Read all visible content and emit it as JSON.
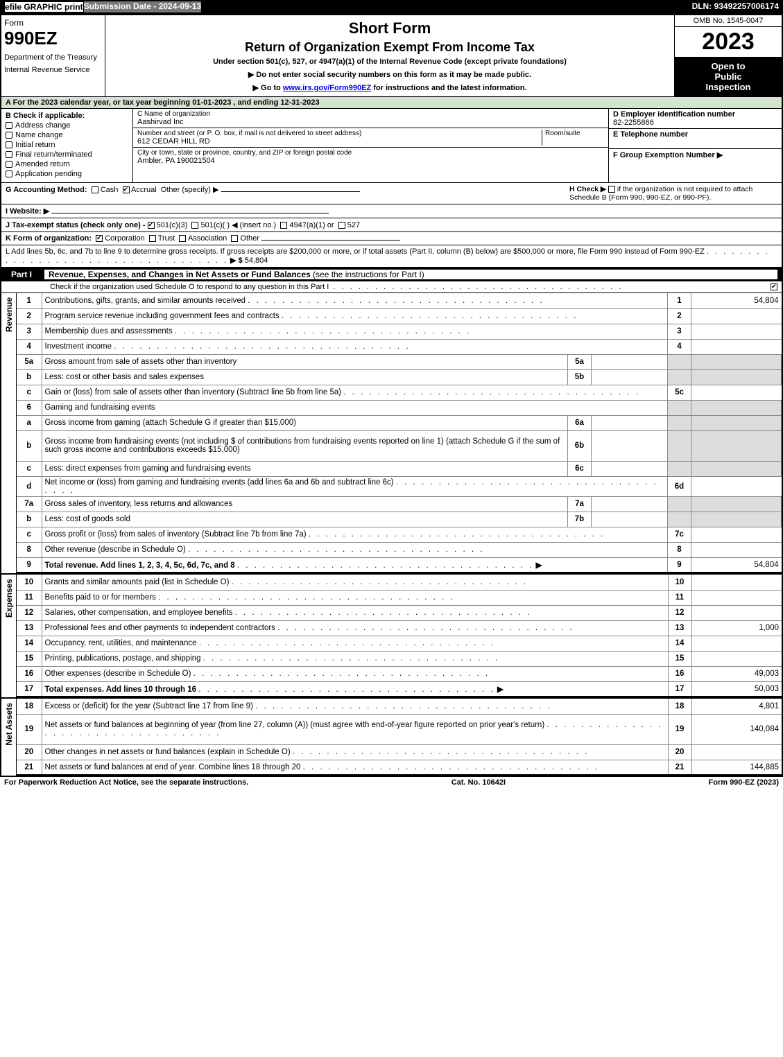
{
  "header": {
    "efile": "efile GRAPHIC print",
    "submission": "Submission Date - 2024-09-13",
    "dln": "DLN: 93492257006174"
  },
  "title": {
    "form_word": "Form",
    "form_number": "990EZ",
    "dept1": "Department of the Treasury",
    "dept2": "Internal Revenue Service",
    "short_form": "Short Form",
    "main": "Return of Organization Exempt From Income Tax",
    "sub1": "Under section 501(c), 527, or 4947(a)(1) of the Internal Revenue Code (except private foundations)",
    "sub2a": "▶ Do not enter social security numbers on this form as it may be made public.",
    "sub2b": "▶ Go to www.irs.gov/Form990EZ for instructions and the latest information.",
    "omb": "OMB No. 1545-0047",
    "year": "2023",
    "open1": "Open to",
    "open2": "Public",
    "open3": "Inspection"
  },
  "rowA": "A  For the 2023 calendar year, or tax year beginning 01-01-2023 , and ending 12-31-2023",
  "boxB": {
    "label": "B  Check if applicable:",
    "items": [
      "Address change",
      "Name change",
      "Initial return",
      "Final return/terminated",
      "Amended return",
      "Application pending"
    ]
  },
  "boxC": {
    "label_name": "C Name of organization",
    "name": "Aashirvad Inc",
    "label_addr": "Number and street (or P. O. box, if mail is not delivered to street address)",
    "room": "Room/suite",
    "addr": "612 CEDAR HILL RD",
    "label_city": "City or town, state or province, country, and ZIP or foreign postal code",
    "city": "Ambler, PA  190021504"
  },
  "boxDEF": {
    "d_label": "D Employer identification number",
    "d_val": "82-2255866",
    "e_label": "E Telephone number",
    "e_val": "",
    "f_label": "F Group Exemption Number  ▶",
    "f_val": ""
  },
  "rowG": {
    "left_label": "G Accounting Method:",
    "cash": "Cash",
    "accrual": "Accrual",
    "other": "Other (specify) ▶",
    "h_text1": "H  Check ▶",
    "h_text2": "if the organization is not required to attach Schedule B (Form 990, 990-EZ, or 990-PF)."
  },
  "rowI": {
    "label": "I Website: ▶"
  },
  "rowJ": {
    "label": "J Tax-exempt status (check only one) -",
    "o1": "501(c)(3)",
    "o2": "501(c)(  )  ◀ (insert no.)",
    "o3": "4947(a)(1) or",
    "o4": "527"
  },
  "rowK": {
    "label": "K Form of organization:",
    "items": [
      "Corporation",
      "Trust",
      "Association",
      "Other"
    ]
  },
  "rowL": {
    "text": "L Add lines 5b, 6c, and 7b to line 9 to determine gross receipts. If gross receipts are $200,000 or more, or if total assets (Part II, column (B) below) are $500,000 or more, file Form 990 instead of Form 990-EZ",
    "arrow": "▶ $",
    "amount": "54,804"
  },
  "part1": {
    "tag": "Part I",
    "title": "Revenue, Expenses, and Changes in Net Assets or Fund Balances",
    "paren": "(see the instructions for Part I)",
    "sub": "Check if the organization used Schedule O to respond to any question in this Part I"
  },
  "sections": {
    "revenue": "Revenue",
    "expenses": "Expenses",
    "netassets": "Net Assets"
  },
  "lines": [
    {
      "n": "1",
      "d": "Contributions, gifts, grants, and similar amounts received",
      "r": "1",
      "a": "54,804"
    },
    {
      "n": "2",
      "d": "Program service revenue including government fees and contracts",
      "r": "2",
      "a": ""
    },
    {
      "n": "3",
      "d": "Membership dues and assessments",
      "r": "3",
      "a": ""
    },
    {
      "n": "4",
      "d": "Investment income",
      "r": "4",
      "a": ""
    },
    {
      "n": "5a",
      "d": "Gross amount from sale of assets other than inventory",
      "mini": "5a",
      "shade": true
    },
    {
      "n": "b",
      "d": "Less: cost or other basis and sales expenses",
      "mini": "5b",
      "shade": true
    },
    {
      "n": "c",
      "d": "Gain or (loss) from sale of assets other than inventory (Subtract line 5b from line 5a)",
      "r": "5c",
      "a": ""
    },
    {
      "n": "6",
      "d": "Gaming and fundraising events",
      "shade": true,
      "noamt": true
    },
    {
      "n": "a",
      "d": "Gross income from gaming (attach Schedule G if greater than $15,000)",
      "mini": "6a",
      "shade": true
    },
    {
      "n": "b",
      "d": "Gross income from fundraising events (not including $                      of contributions from fundraising events reported on line 1) (attach Schedule G if the sum of such gross income and contributions exceeds $15,000)",
      "mini": "6b",
      "shade": true,
      "tall": true
    },
    {
      "n": "c",
      "d": "Less: direct expenses from gaming and fundraising events",
      "mini": "6c",
      "shade": true
    },
    {
      "n": "d",
      "d": "Net income or (loss) from gaming and fundraising events (add lines 6a and 6b and subtract line 6c)",
      "r": "6d",
      "a": ""
    },
    {
      "n": "7a",
      "d": "Gross sales of inventory, less returns and allowances",
      "mini": "7a",
      "shade": true
    },
    {
      "n": "b",
      "d": "Less: cost of goods sold",
      "mini": "7b",
      "shade": true
    },
    {
      "n": "c",
      "d": "Gross profit or (loss) from sales of inventory (Subtract line 7b from line 7a)",
      "r": "7c",
      "a": ""
    },
    {
      "n": "8",
      "d": "Other revenue (describe in Schedule O)",
      "r": "8",
      "a": ""
    },
    {
      "n": "9",
      "d": "Total revenue. Add lines 1, 2, 3, 4, 5c, 6d, 7c, and 8",
      "r": "9",
      "a": "54,804",
      "bold": true,
      "arrow": true,
      "thick": true
    }
  ],
  "exp_lines": [
    {
      "n": "10",
      "d": "Grants and similar amounts paid (list in Schedule O)",
      "r": "10",
      "a": ""
    },
    {
      "n": "11",
      "d": "Benefits paid to or for members",
      "r": "11",
      "a": ""
    },
    {
      "n": "12",
      "d": "Salaries, other compensation, and employee benefits",
      "r": "12",
      "a": ""
    },
    {
      "n": "13",
      "d": "Professional fees and other payments to independent contractors",
      "r": "13",
      "a": "1,000"
    },
    {
      "n": "14",
      "d": "Occupancy, rent, utilities, and maintenance",
      "r": "14",
      "a": ""
    },
    {
      "n": "15",
      "d": "Printing, publications, postage, and shipping",
      "r": "15",
      "a": ""
    },
    {
      "n": "16",
      "d": "Other expenses (describe in Schedule O)",
      "r": "16",
      "a": "49,003"
    },
    {
      "n": "17",
      "d": "Total expenses. Add lines 10 through 16",
      "r": "17",
      "a": "50,003",
      "bold": true,
      "arrow": true,
      "thick": true
    }
  ],
  "net_lines": [
    {
      "n": "18",
      "d": "Excess or (deficit) for the year (Subtract line 17 from line 9)",
      "r": "18",
      "a": "4,801"
    },
    {
      "n": "19",
      "d": "Net assets or fund balances at beginning of year (from line 27, column (A)) (must agree with end-of-year figure reported on prior year's return)",
      "r": "19",
      "a": "140,084",
      "tall": true
    },
    {
      "n": "20",
      "d": "Other changes in net assets or fund balances (explain in Schedule O)",
      "r": "20",
      "a": ""
    },
    {
      "n": "21",
      "d": "Net assets or fund balances at end of year. Combine lines 18 through 20",
      "r": "21",
      "a": "144,885",
      "thick": true
    }
  ],
  "footer": {
    "left": "For Paperwork Reduction Act Notice, see the separate instructions.",
    "mid": "Cat. No. 10642I",
    "right": "Form 990-EZ (2023)"
  }
}
